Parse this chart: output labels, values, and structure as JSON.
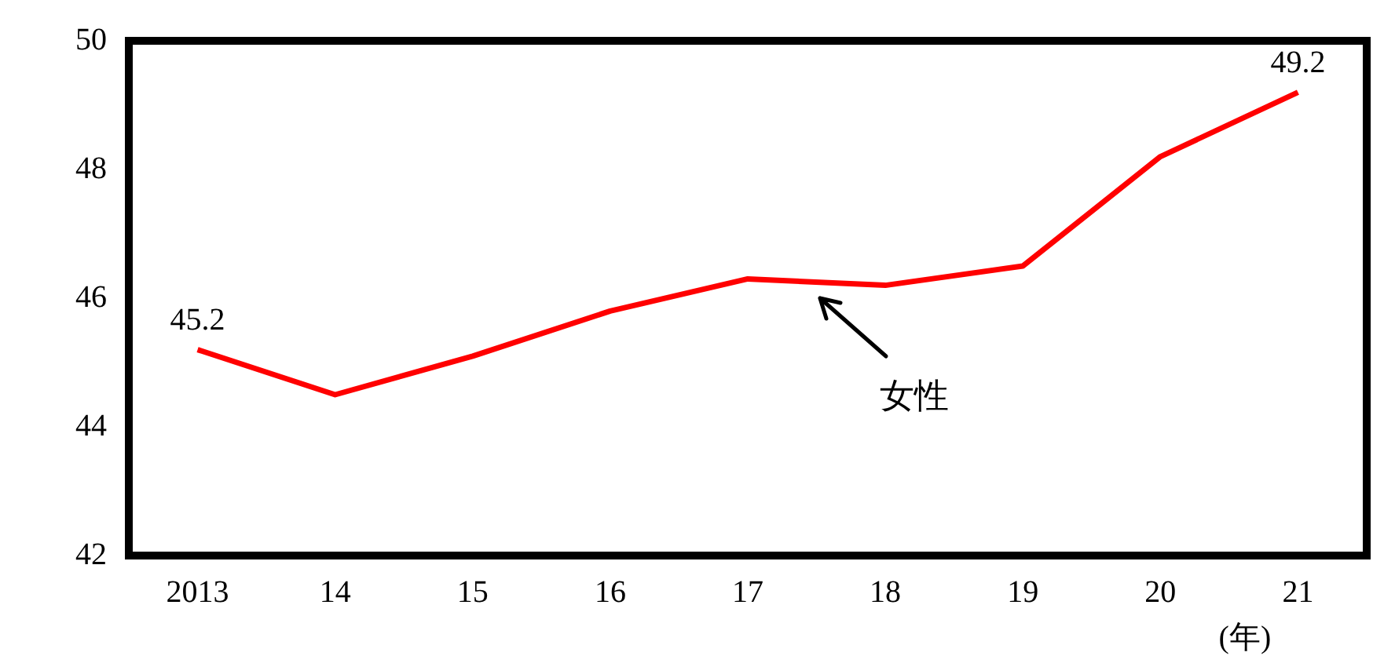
{
  "chart_data": {
    "type": "line",
    "xlabel": "(年)",
    "categories": [
      "2013",
      "14",
      "15",
      "16",
      "17",
      "18",
      "19",
      "20",
      "21"
    ],
    "series": [
      {
        "name": "女性",
        "color": "#ff0000",
        "values": [
          45.2,
          44.5,
          45.1,
          45.8,
          46.3,
          46.2,
          46.5,
          48.2,
          49.2
        ],
        "value_labels": [
          "45.2",
          null,
          null,
          null,
          null,
          null,
          null,
          null,
          "49.2"
        ]
      }
    ],
    "ylim": [
      42,
      50
    ],
    "yticks": [
      42,
      44,
      46,
      48,
      50
    ],
    "grid": false,
    "legend": false,
    "marker": "none",
    "line_style": "solid"
  }
}
